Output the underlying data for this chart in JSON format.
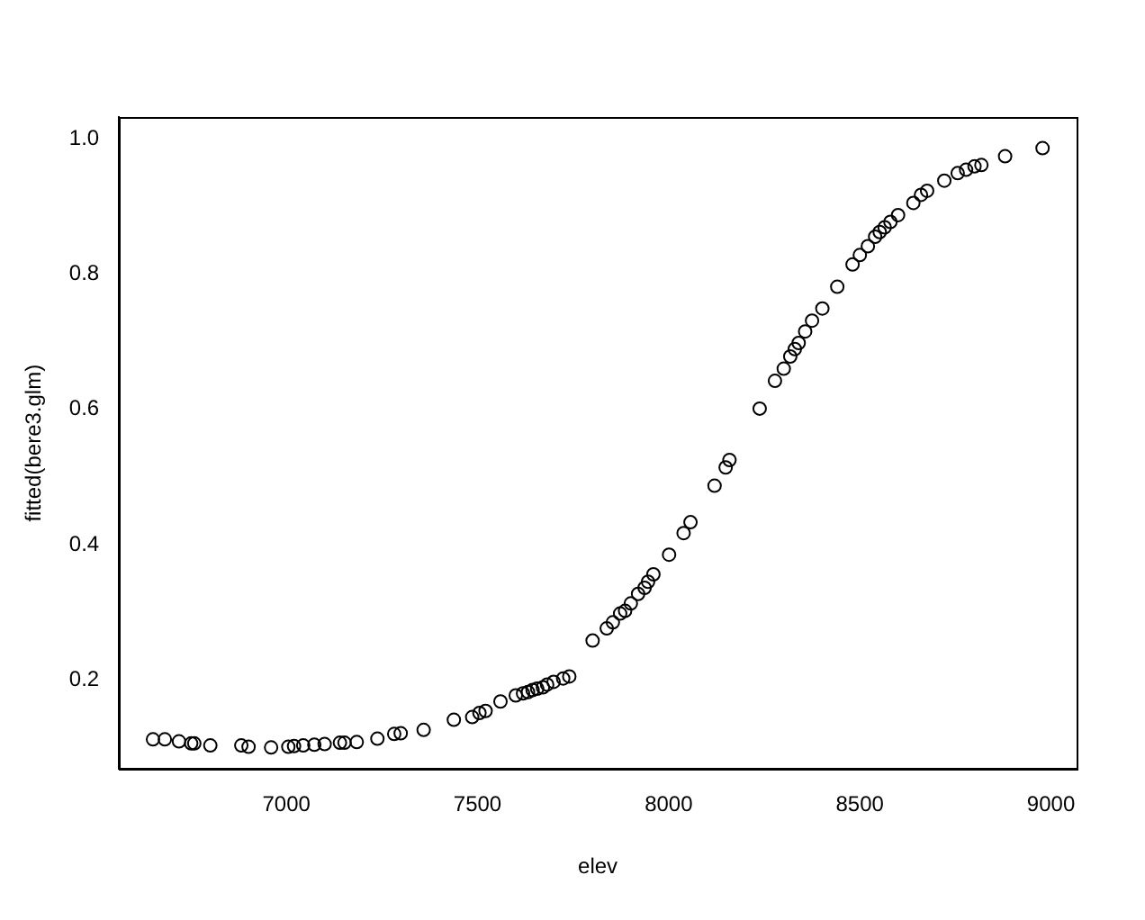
{
  "chart_data": {
    "type": "scatter",
    "xlabel": "elev",
    "ylabel": "fitted(bere3.glm)",
    "x": [
      6651,
      6682,
      6719,
      6751,
      6759,
      6801,
      6882,
      6901,
      6960,
      7005,
      7020,
      7044,
      7073,
      7100,
      7140,
      7152,
      7184,
      7238,
      7282,
      7299,
      7359,
      7438,
      7486,
      7505,
      7521,
      7560,
      7600,
      7619,
      7632,
      7644,
      7656,
      7671,
      7682,
      7699,
      7724,
      7740,
      7801,
      7838,
      7854,
      7873,
      7886,
      7901,
      7920,
      7937,
      7946,
      7960,
      8001,
      8039,
      8057,
      8120,
      8149,
      8159,
      8238,
      8278,
      8301,
      8318,
      8330,
      8340,
      8357,
      8375,
      8402,
      8441,
      8481,
      8500,
      8521,
      8540,
      8552,
      8565,
      8580,
      8600,
      8640,
      8660,
      8676,
      8721,
      8756,
      8778,
      8800,
      8818,
      8880,
      8978
    ],
    "values": [
      0.112,
      0.112,
      0.109,
      0.106,
      0.106,
      0.103,
      0.103,
      0.101,
      0.1,
      0.101,
      0.102,
      0.103,
      0.104,
      0.105,
      0.107,
      0.107,
      0.108,
      0.113,
      0.12,
      0.121,
      0.126,
      0.141,
      0.145,
      0.151,
      0.154,
      0.168,
      0.177,
      0.18,
      0.182,
      0.185,
      0.187,
      0.189,
      0.193,
      0.197,
      0.202,
      0.205,
      0.258,
      0.276,
      0.285,
      0.298,
      0.302,
      0.313,
      0.327,
      0.336,
      0.345,
      0.356,
      0.385,
      0.417,
      0.433,
      0.487,
      0.514,
      0.525,
      0.601,
      0.642,
      0.66,
      0.678,
      0.689,
      0.698,
      0.715,
      0.731,
      0.749,
      0.781,
      0.814,
      0.828,
      0.841,
      0.855,
      0.862,
      0.869,
      0.877,
      0.887,
      0.905,
      0.917,
      0.923,
      0.938,
      0.949,
      0.954,
      0.959,
      0.961,
      0.974,
      0.986
    ],
    "color": "#000000",
    "marker": "circle",
    "xlim": [
      6562,
      9067
    ],
    "ylim": [
      0.068,
      1.032
    ],
    "xticks": [
      7000,
      7500,
      8000,
      8500,
      9000
    ],
    "yticks": [
      0.2,
      0.4,
      0.6,
      0.8,
      {
        "value": 1,
        "label": "1.0"
      }
    ]
  }
}
